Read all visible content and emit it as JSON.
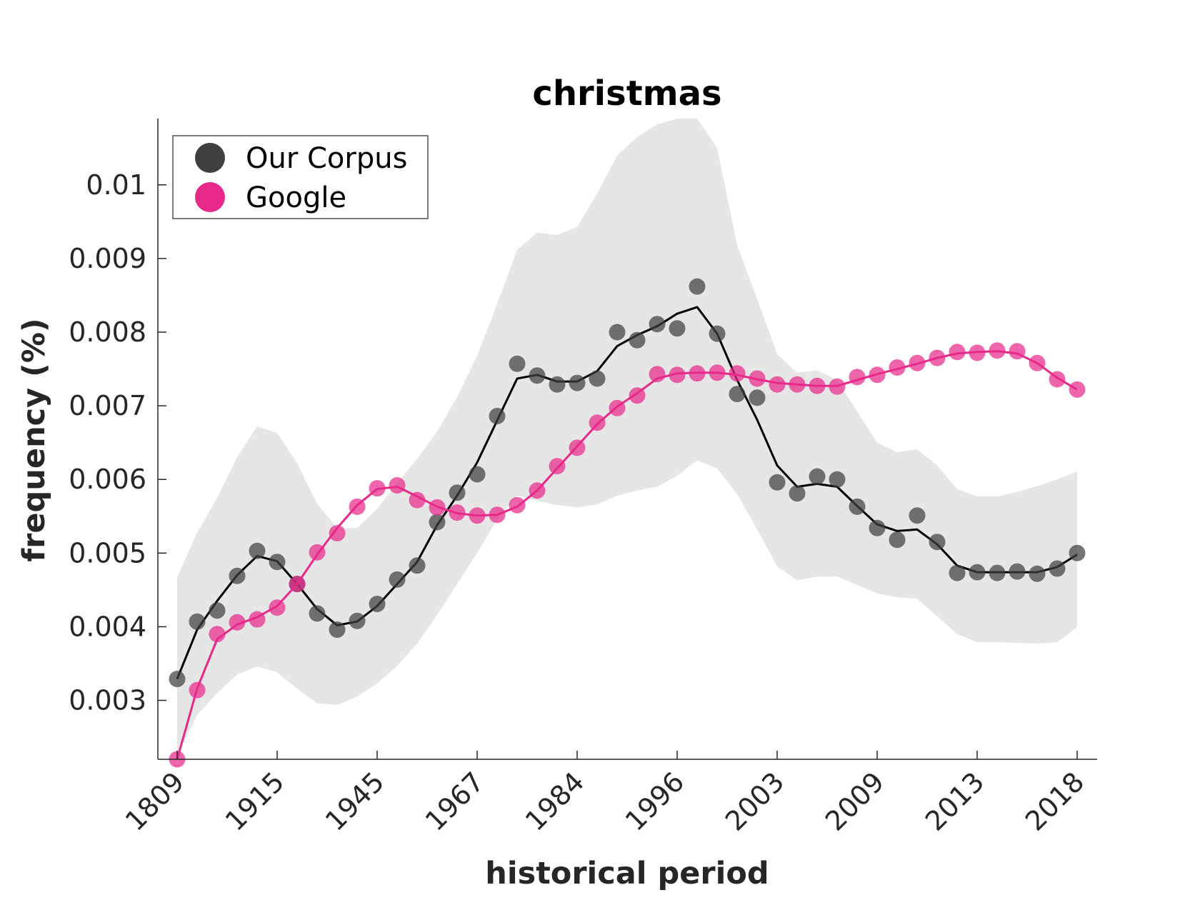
{
  "chart_data": {
    "type": "line",
    "title": "christmas",
    "xlabel": "historical period",
    "ylabel": "frequency (%)",
    "ylim": [
      0.0022,
      0.0109
    ],
    "yticks": [
      0.003,
      0.004,
      0.005,
      0.006,
      0.007,
      0.008,
      0.009,
      0.01
    ],
    "ytick_labels": [
      "0.003",
      "0.004",
      "0.005",
      "0.006",
      "0.007",
      "0.008",
      "0.009",
      "0.01"
    ],
    "x_count": 46,
    "xtick_positions": [
      0,
      5,
      10,
      15,
      20,
      25,
      30,
      35,
      40,
      45
    ],
    "xtick_labels": [
      "1809",
      "1915",
      "1945",
      "1967",
      "1984",
      "1996",
      "2003",
      "2009",
      "2013",
      "2018"
    ],
    "band": {
      "name": "range",
      "color": "#e6e6e6",
      "upper": [
        0.00467,
        0.00528,
        0.00575,
        0.0063,
        0.00672,
        0.00663,
        0.00622,
        0.00567,
        0.00534,
        0.00534,
        0.0056,
        0.00595,
        0.00628,
        0.00665,
        0.00712,
        0.00768,
        0.00838,
        0.00912,
        0.00935,
        0.00932,
        0.00943,
        0.00988,
        0.0104,
        0.01065,
        0.01082,
        0.0109,
        0.0109,
        0.0105,
        0.00918,
        0.00845,
        0.0077,
        0.00745,
        0.00748,
        0.00735,
        0.00692,
        0.0065,
        0.00637,
        0.00641,
        0.00619,
        0.00587,
        0.00577,
        0.00577,
        0.00583,
        0.00591,
        0.006,
        0.00611
      ],
      "lower": [
        0.00225,
        0.0028,
        0.0031,
        0.00335,
        0.00346,
        0.00338,
        0.00316,
        0.00296,
        0.00294,
        0.00305,
        0.00323,
        0.00347,
        0.00377,
        0.00416,
        0.00458,
        0.005,
        0.00546,
        0.00578,
        0.00571,
        0.00565,
        0.00562,
        0.00566,
        0.00578,
        0.00585,
        0.0059,
        0.00605,
        0.00626,
        0.00615,
        0.0058,
        0.00532,
        0.00482,
        0.00463,
        0.00468,
        0.00468,
        0.00457,
        0.00445,
        0.0044,
        0.00438,
        0.00414,
        0.0039,
        0.00379,
        0.00379,
        0.00378,
        0.00377,
        0.00379,
        0.00399
      ]
    },
    "series": [
      {
        "name": "Our Corpus",
        "color": "#000000",
        "marker_color": "#404040",
        "points": [
          0.00329,
          0.00407,
          0.00422,
          0.00469,
          0.00503,
          0.00488,
          0.00458,
          0.00418,
          0.00396,
          0.00408,
          0.00431,
          0.00464,
          0.00483,
          0.00542,
          0.00582,
          0.00607,
          0.00686,
          0.00757,
          0.00741,
          0.00729,
          0.00731,
          0.00737,
          0.008,
          0.00789,
          0.00811,
          0.00805,
          0.00862,
          0.00798,
          0.00716,
          0.00711,
          0.00596,
          0.00581,
          0.00604,
          0.006,
          0.00563,
          0.00534,
          0.00518,
          0.00551,
          0.00515,
          0.00473,
          0.00474,
          0.00473,
          0.00475,
          0.00472,
          0.00479,
          0.005
        ],
        "smooth": [
          0.00329,
          0.00396,
          0.00435,
          0.0047,
          0.00496,
          0.00489,
          0.00458,
          0.00424,
          0.00402,
          0.00407,
          0.00428,
          0.00458,
          0.00488,
          0.00538,
          0.00578,
          0.00623,
          0.0068,
          0.00737,
          0.00742,
          0.00733,
          0.00733,
          0.00747,
          0.00781,
          0.00796,
          0.00808,
          0.00825,
          0.00834,
          0.00798,
          0.00735,
          0.00681,
          0.00619,
          0.0059,
          0.00594,
          0.0059,
          0.00564,
          0.00539,
          0.0053,
          0.00532,
          0.00512,
          0.00483,
          0.00474,
          0.00474,
          0.00474,
          0.00474,
          0.00481,
          0.00498
        ]
      },
      {
        "name": "Google",
        "color": "#e7298a",
        "marker_color": "#e7298a",
        "points": [
          0.0022,
          0.00314,
          0.0039,
          0.00406,
          0.0041,
          0.00426,
          0.00458,
          0.00501,
          0.00527,
          0.00563,
          0.00588,
          0.00592,
          0.00572,
          0.00562,
          0.00555,
          0.00551,
          0.00552,
          0.00565,
          0.00585,
          0.00618,
          0.00643,
          0.00677,
          0.00697,
          0.00714,
          0.00743,
          0.00742,
          0.00744,
          0.00745,
          0.00744,
          0.00737,
          0.00729,
          0.00729,
          0.00727,
          0.00726,
          0.00739,
          0.00742,
          0.00752,
          0.00758,
          0.00765,
          0.00773,
          0.00772,
          0.00775,
          0.00774,
          0.00758,
          0.00736,
          0.00722
        ],
        "smooth": [
          0.0022,
          0.00316,
          0.00383,
          0.00403,
          0.00413,
          0.00428,
          0.00458,
          0.00498,
          0.00534,
          0.00565,
          0.00587,
          0.0059,
          0.00577,
          0.00563,
          0.00554,
          0.00551,
          0.00552,
          0.00563,
          0.00585,
          0.00615,
          0.00645,
          0.00675,
          0.00699,
          0.00717,
          0.00737,
          0.00744,
          0.00745,
          0.00745,
          0.00742,
          0.00736,
          0.00731,
          0.00729,
          0.00727,
          0.00727,
          0.00735,
          0.00743,
          0.0075,
          0.00757,
          0.00765,
          0.00771,
          0.00773,
          0.00774,
          0.00771,
          0.00758,
          0.00738,
          0.00722
        ]
      }
    ],
    "legend": {
      "position": "top-left",
      "entries": [
        "Our Corpus",
        "Google"
      ]
    }
  }
}
